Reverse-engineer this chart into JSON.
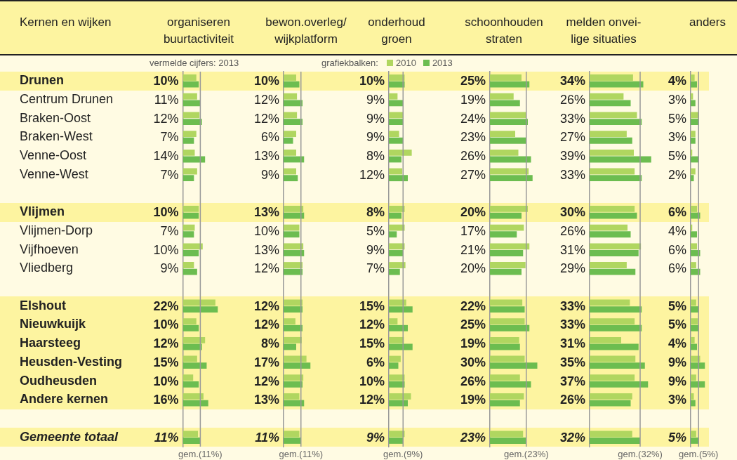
{
  "chart_data": [
    {
      "type": "bar",
      "orientation": "horizontal",
      "title": "organiseren\nbuurtactiviteit",
      "ylabel": "Kernen en wijken",
      "tick_labels": "y",
      "categories": [
        "Drunen",
        "Centrum Drunen",
        "Braken-Oost",
        "Braken-West",
        "Venne-Oost",
        "Venne-West",
        null,
        "Vlijmen",
        "Vlijmen-Dorp",
        "Vijfhoeven",
        "Vliedberg",
        null,
        "Elshout",
        "Nieuwkuijk",
        "Haarsteeg",
        "Heusden-Vesting",
        "Oudheusden",
        "Andere kernen",
        null,
        "Gemeente totaal"
      ],
      "series": [
        {
          "color": "#b0d660",
          "values": [
            8.5,
            9,
            10.5,
            8.5,
            7.5,
            9,
            null,
            10,
            7.5,
            12.5,
            7,
            null,
            20.5,
            8.5,
            14,
            9,
            6.5,
            13,
            null,
            9.5
          ]
        },
        {
          "color": "#6cbd50",
          "values": [
            10,
            11,
            12,
            7,
            14,
            7,
            null,
            10,
            7,
            10,
            9,
            null,
            22,
            10,
            12,
            15,
            10,
            16,
            null,
            11
          ],
          "value_labels": [
            "10%",
            "11%",
            "12%",
            "7%",
            "14%",
            "7%",
            null,
            "10%",
            "7%",
            "10%",
            "9%",
            null,
            "22%",
            "10%",
            "12%",
            "15%",
            "10%",
            "16%",
            null,
            "11%"
          ]
        }
      ],
      "ref_lines": [
        {
          "axis": "x",
          "value": 11,
          "label": "gem.(11%)",
          "color": "#999999"
        }
      ],
      "annotations": [
        "vermelde cijfers: 2013"
      ],
      "bands": [
        {
          "axis": "y",
          "from": "Drunen",
          "to": "Drunen",
          "color": "#fdf4a0"
        },
        {
          "axis": "y",
          "from": "Vlijmen",
          "to": "Vlijmen",
          "color": "#fdf4a0"
        },
        {
          "axis": "y",
          "from": "Elshout",
          "to": "Andere kernen",
          "color": "#fdf4a0"
        },
        {
          "axis": "y",
          "from": "Gemeente totaal",
          "to": "Gemeente totaal",
          "color": "#fdf4a0"
        }
      ]
    },
    {
      "type": "bar",
      "orientation": "horizontal",
      "title": "bewon.overleg/\nwijkplatform",
      "tick_labels": false,
      "legend": "top",
      "legend_title": "grafiekbalken:",
      "series": [
        {
          "name": "2010",
          "color": "#b0d660",
          "values": [
            8,
            8.5,
            8.5,
            8,
            8,
            8,
            null,
            12.5,
            10,
            12.5,
            12,
            null,
            12,
            7.5,
            11.5,
            14.5,
            12.5,
            10,
            null,
            10
          ]
        },
        {
          "name": "2013",
          "color": "#6cbd50",
          "values": [
            10,
            12,
            12,
            6,
            13,
            9,
            null,
            13,
            10,
            13,
            12,
            null,
            12,
            12,
            8,
            17,
            12,
            13,
            null,
            11
          ],
          "value_labels": [
            "10%",
            "12%",
            "12%",
            "6%",
            "13%",
            "9%",
            null,
            "13%",
            "10%",
            "13%",
            "12%",
            null,
            "12%",
            "12%",
            "8%",
            "17%",
            "12%",
            "13%",
            null,
            "11%"
          ]
        }
      ],
      "ref_lines": [
        {
          "axis": "x",
          "value": 11,
          "label": "gem.(11%)",
          "color": "#999999"
        }
      ]
    },
    {
      "type": "bar",
      "orientation": "horizontal",
      "title": "onderhoud\ngroen",
      "tick_labels": false,
      "series": [
        {
          "color": "#b0d660",
          "values": [
            10,
            5.5,
            9,
            6.5,
            14.5,
            8.5,
            null,
            10,
            10,
            10,
            10.5,
            null,
            11,
            5.5,
            9.5,
            7.5,
            10,
            14,
            null,
            10
          ]
        },
        {
          "color": "#6cbd50",
          "values": [
            10,
            9,
            9,
            9,
            8,
            12,
            null,
            8,
            5,
            9,
            7,
            null,
            15,
            12,
            15,
            6,
            10,
            12,
            null,
            9
          ],
          "value_labels": [
            "10%",
            "9%",
            "9%",
            "9%",
            "8%",
            "12%",
            null,
            "8%",
            "5%",
            "9%",
            "7%",
            null,
            "15%",
            "12%",
            "15%",
            "6%",
            "10%",
            "12%",
            null,
            "9%"
          ]
        }
      ],
      "ref_lines": [
        {
          "axis": "x",
          "value": 9,
          "label": "gem.(9%)",
          "color": "#999999"
        }
      ]
    },
    {
      "type": "bar",
      "orientation": "horizontal",
      "title": "schoonhouden\nstraten",
      "tick_labels": false,
      "series": [
        {
          "color": "#b0d660",
          "values": [
            20,
            15,
            23,
            16,
            18,
            24.5,
            null,
            24,
            21.5,
            25,
            22.5,
            null,
            20.5,
            22,
            18.5,
            22,
            19,
            21.5,
            null,
            21
          ]
        },
        {
          "color": "#6cbd50",
          "values": [
            25,
            19,
            24,
            23,
            26,
            27,
            null,
            20,
            17,
            21,
            20,
            null,
            22,
            25,
            19,
            30,
            26,
            19,
            null,
            23
          ],
          "value_labels": [
            "25%",
            "19%",
            "24%",
            "23%",
            "26%",
            "27%",
            null,
            "20%",
            "17%",
            "21%",
            "20%",
            null,
            "22%",
            "25%",
            "19%",
            "30%",
            "26%",
            "19%",
            null,
            "23%"
          ]
        }
      ],
      "ref_lines": [
        {
          "axis": "x",
          "value": 23,
          "label": "gem.(23%)",
          "color": "#999999"
        }
      ]
    },
    {
      "type": "bar",
      "orientation": "horizontal",
      "title": "melden onvei-\nlige situaties",
      "tick_labels": false,
      "series": [
        {
          "color": "#b0d660",
          "values": [
            27.5,
            21.5,
            30,
            23.5,
            28,
            28.5,
            null,
            28.5,
            24,
            32.5,
            23.5,
            null,
            25.5,
            28.5,
            20,
            29,
            28.5,
            27,
            null,
            27
          ]
        },
        {
          "color": "#6cbd50",
          "values": [
            34,
            26,
            33,
            27,
            39,
            33,
            null,
            30,
            26,
            31,
            29,
            null,
            33,
            33,
            31,
            35,
            37,
            26,
            null,
            32
          ],
          "value_labels": [
            "34%",
            "26%",
            "33%",
            "27%",
            "39%",
            "33%",
            null,
            "30%",
            "26%",
            "31%",
            "29%",
            null,
            "33%",
            "33%",
            "31%",
            "35%",
            "37%",
            "26%",
            null,
            "32%"
          ]
        }
      ],
      "ref_lines": [
        {
          "axis": "x",
          "value": 32,
          "label": "gem.(32%)",
          "color": "#999999"
        }
      ]
    },
    {
      "type": "bar",
      "orientation": "horizontal",
      "title": "anders",
      "tick_labels": false,
      "series": [
        {
          "color": "#b0d660",
          "values": [
            2.5,
            1.5,
            5,
            3,
            1,
            3,
            null,
            4,
            1,
            4,
            3.5,
            null,
            3.5,
            4.5,
            2.5,
            6,
            3.5,
            2,
            null,
            3.5
          ]
        },
        {
          "color": "#6cbd50",
          "values": [
            4,
            3,
            5,
            3,
            5,
            2,
            null,
            6,
            4,
            6,
            6,
            null,
            5,
            5,
            4,
            9,
            9,
            3,
            null,
            5
          ],
          "value_labels": [
            "4%",
            "3%",
            "5%",
            "3%",
            "5%",
            "2%",
            null,
            "6%",
            "4%",
            "6%",
            "6%",
            null,
            "5%",
            "5%",
            "4%",
            "9%",
            "9%",
            "3%",
            null,
            "5%"
          ]
        }
      ],
      "ref_lines": [
        {
          "axis": "x",
          "value": 5,
          "label": "gem.(5%)",
          "color": "#999999"
        }
      ]
    }
  ]
}
